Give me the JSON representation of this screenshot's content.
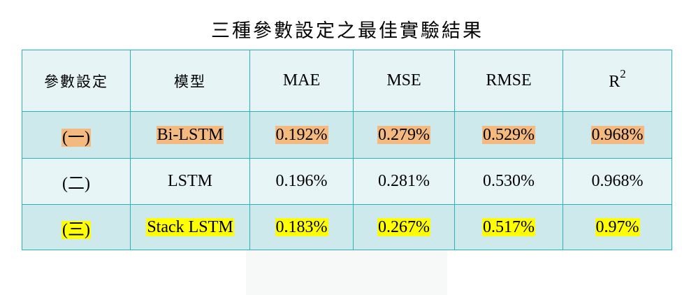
{
  "title": "三種參數設定之最佳實驗結果",
  "table": {
    "headers": [
      "參數設定",
      "模型",
      "MAE",
      "MSE",
      "RMSE"
    ],
    "r2_header": {
      "base": "R",
      "sup": "2"
    },
    "rows": [
      [
        "(一)",
        "Bi-LSTM",
        "0.192%",
        "0.279%",
        "0.529%",
        "0.968%"
      ],
      [
        "(二)",
        "LSTM",
        "0.196%",
        "0.281%",
        "0.530%",
        "0.968%"
      ],
      [
        "(三)",
        "Stack LSTM",
        "0.183%",
        "0.267%",
        "0.517%",
        "0.97%"
      ]
    ]
  },
  "colors": {
    "border": "#2bb3bd",
    "header_bg": "#e6f4f6",
    "row_alt_bg": "#cde9ec",
    "highlight_orange": "#f4b97f",
    "highlight_yellow": "#ffff00"
  }
}
